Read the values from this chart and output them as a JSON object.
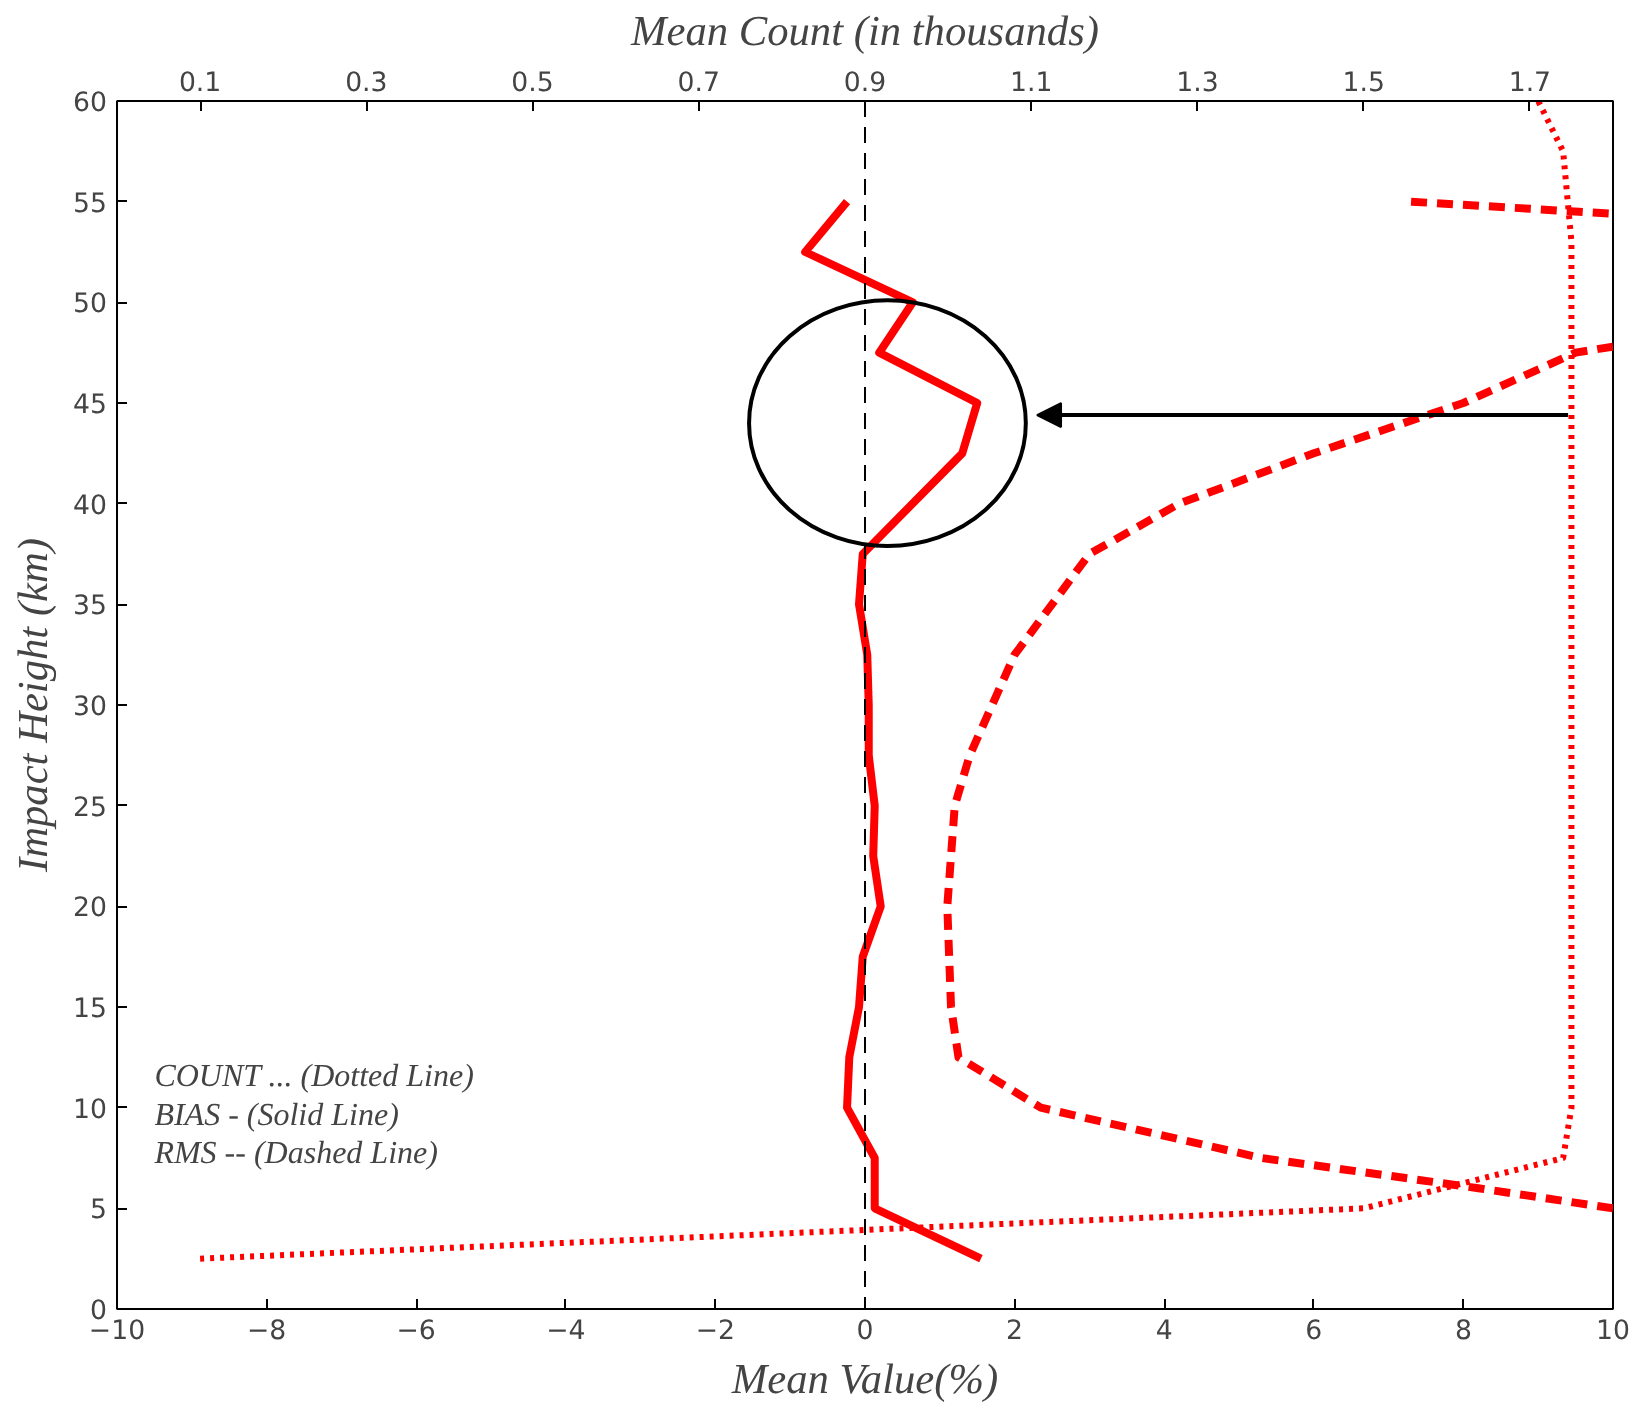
{
  "chart_data": {
    "type": "line",
    "xlabel": "Mean Value(%)",
    "ylabel": "Impact Height (km)",
    "x2label": "Mean Count (in thousands)",
    "xlim": [
      -10,
      10
    ],
    "xticks": [
      -10,
      -8,
      -6,
      -4,
      -2,
      0,
      2,
      4,
      6,
      8,
      10
    ],
    "ylim": [
      0,
      60
    ],
    "yticks": [
      0,
      5,
      10,
      15,
      20,
      25,
      30,
      35,
      40,
      45,
      50,
      55,
      60
    ],
    "x2lim": [
      0,
      1.8
    ],
    "x2ticks": [
      0.1,
      0.3,
      0.5,
      0.7,
      0.9,
      1.1,
      1.3,
      1.5,
      1.7
    ],
    "grid": false,
    "marker": "none",
    "series": [
      {
        "axis": "x2",
        "line_style": "dotted",
        "color": "#ff0000",
        "x": [
          0.1,
          1.5,
          1.74,
          1.75,
          1.75,
          1.75,
          1.75,
          1.75,
          1.75,
          1.74,
          1.71
        ],
        "values": [
          2.5,
          5,
          7.5,
          10,
          20,
          30,
          40,
          50,
          53,
          57.5,
          60
        ]
      },
      {
        "line_style": "solid",
        "color": "#ff0000",
        "x": [
          1.55,
          0.13,
          0.13,
          -0.24,
          -0.21,
          -0.08,
          -0.03,
          0.21,
          0.11,
          0.13,
          0.05,
          0.05,
          0.03,
          -0.08,
          -0.03,
          1.3,
          1.5,
          0.19,
          0.64,
          -0.8,
          -0.24
        ],
        "values": [
          2.5,
          5,
          7.5,
          10,
          12.5,
          15,
          17.5,
          20,
          22.5,
          25,
          27.5,
          30,
          32.5,
          35,
          37.5,
          42.5,
          45,
          47.5,
          50,
          52.5,
          55
        ]
      },
      {
        "line_style": "dashed",
        "color": "#ff0000",
        "x": [
          10,
          8.2,
          5.3,
          2.35,
          1.25,
          1.15,
          1.1,
          1.2,
          1.4,
          1.7,
          2.0,
          2.5,
          3.0,
          4.2,
          6.0,
          8.0,
          9.5,
          10,
          null,
          7.3,
          10
        ],
        "values": [
          5,
          6,
          7.5,
          10,
          12.5,
          15,
          20,
          25,
          27.5,
          30,
          32.5,
          35,
          37.5,
          40,
          42.5,
          45,
          47.5,
          47.8,
          null,
          55,
          54.4
        ]
      }
    ],
    "ref_lines": [
      {
        "axis": "x",
        "value": 0,
        "line_style": "dashed",
        "color": "#000000"
      }
    ],
    "annotations": [
      "COUNT ... (Dotted Line)",
      "BIAS - (Solid Line)",
      "RMS -- (Dashed Line)"
    ]
  }
}
